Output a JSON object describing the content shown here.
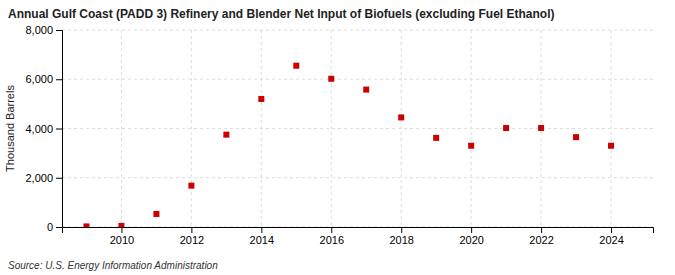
{
  "chart_data": {
    "type": "scatter",
    "title": "Annual Gulf Coast (PADD 3) Refinery and Blender Net Input of Biofuels (excluding Fuel Ethanol)",
    "ylabel": "Thousand Barrels",
    "source": "Source: U.S. Energy Information Administration",
    "x": [
      2009,
      2010,
      2011,
      2012,
      2013,
      2014,
      2015,
      2016,
      2017,
      2018,
      2019,
      2020,
      2021,
      2022,
      2023,
      2024
    ],
    "values": [
      25,
      45,
      530,
      1680,
      3750,
      5200,
      6550,
      6020,
      5580,
      4450,
      3620,
      3300,
      4020,
      4020,
      3650,
      3300
    ],
    "color": "#cc0000",
    "marker": "square",
    "xlim": [
      2008.3,
      2025.2
    ],
    "xticks": [
      2010,
      2012,
      2014,
      2016,
      2018,
      2020,
      2022,
      2024
    ],
    "ylim": [
      0,
      8000
    ],
    "yticks": [
      0,
      {
        "value": 2000,
        "label": "2,000"
      },
      {
        "value": 4000,
        "label": "4,000"
      },
      {
        "value": 6000,
        "label": "6,000"
      },
      {
        "value": 8000,
        "label": "8,000"
      }
    ],
    "grid": true
  }
}
